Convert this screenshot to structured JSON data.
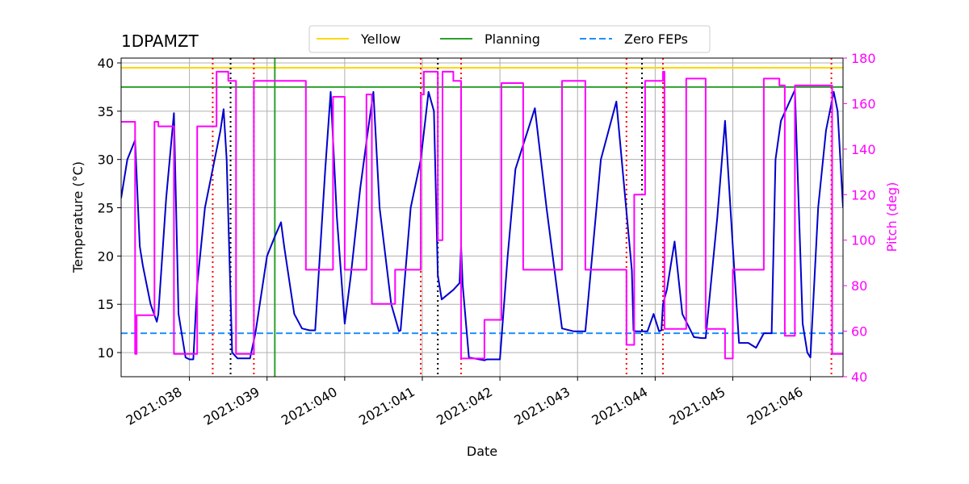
{
  "chart_data": {
    "type": "line",
    "title": "1DPAMZT",
    "xlabel": "Date",
    "ylabel": "Temperature ($^\\circ$C)",
    "ylabel_display": "Temperature (°C)",
    "y2label": "Pitch (deg)",
    "xlim": [
      37.12,
      46.42
    ],
    "ylim": [
      7.5,
      40.5
    ],
    "y2lim": [
      40,
      180
    ],
    "x_ticks": [
      {
        "value": 38,
        "label": "2021:038"
      },
      {
        "value": 39,
        "label": "2021:039"
      },
      {
        "value": 40,
        "label": "2021:040"
      },
      {
        "value": 41,
        "label": "2021:041"
      },
      {
        "value": 42,
        "label": "2021:042"
      },
      {
        "value": 43,
        "label": "2021:043"
      },
      {
        "value": 44,
        "label": "2021:044"
      },
      {
        "value": 45,
        "label": "2021:045"
      },
      {
        "value": 46,
        "label": "2021:046"
      }
    ],
    "y_ticks": [
      10,
      15,
      20,
      25,
      30,
      35,
      40
    ],
    "y2_ticks": [
      40,
      60,
      80,
      100,
      120,
      140,
      160,
      180
    ],
    "grid": true,
    "legend": {
      "placement": "top-center",
      "entries": [
        {
          "label": "Yellow",
          "color": "#ffd700",
          "style": "solid"
        },
        {
          "label": "Planning",
          "color": "#2ca02c",
          "style": "solid"
        },
        {
          "label": "Zero FEPs",
          "color": "#1e90ff",
          "style": "dashed"
        }
      ]
    },
    "limit_lines": [
      {
        "name": "Yellow",
        "y": 39.5,
        "color": "#ffd700",
        "style": "solid"
      },
      {
        "name": "Planning",
        "y": 37.5,
        "color": "#2ca02c",
        "style": "solid"
      },
      {
        "name": "Zero FEPs",
        "y": 12.0,
        "color": "#1e90ff",
        "style": "dashed"
      }
    ],
    "vlines_red_dotted": [
      38.3,
      38.83,
      40.98,
      41.5,
      43.63,
      44.1,
      46.27
    ],
    "vlines_black_dotted": [
      38.53,
      41.2,
      43.83
    ],
    "vline_green": 39.1,
    "series": [
      {
        "name": "Temperature",
        "axis": "left",
        "color": "#0000cd",
        "x": [
          37.12,
          37.2,
          37.3,
          37.36,
          37.4,
          37.5,
          37.58,
          37.6,
          37.7,
          37.8,
          37.86,
          37.95,
          38.0,
          38.05,
          38.1,
          38.2,
          38.3,
          38.4,
          38.44,
          38.48,
          38.55,
          38.62,
          38.7,
          38.78,
          38.85,
          39.0,
          39.1,
          39.18,
          39.22,
          39.35,
          39.45,
          39.55,
          39.62,
          39.75,
          39.82,
          39.9,
          40.0,
          40.08,
          40.2,
          40.3,
          40.37,
          40.45,
          40.6,
          40.7,
          40.72,
          40.85,
          40.98,
          41.08,
          41.15,
          41.2,
          41.25,
          41.4,
          41.48,
          41.5,
          41.52,
          41.6,
          41.8,
          41.83,
          42.0,
          42.1,
          42.2,
          42.45,
          42.6,
          42.8,
          42.95,
          43.1,
          43.3,
          43.5,
          43.7,
          43.72,
          43.75,
          43.78,
          43.85,
          43.9,
          43.98,
          44.05,
          44.08,
          44.1,
          44.15,
          44.25,
          44.35,
          44.5,
          44.6,
          44.65,
          44.8,
          44.9,
          45.0,
          45.08,
          45.2,
          45.3,
          45.4,
          45.45,
          45.5,
          45.55,
          45.62,
          45.8,
          45.9,
          45.96,
          46.0,
          46.1,
          46.2,
          46.3,
          46.35,
          46.42
        ],
        "y": [
          26,
          30,
          32,
          21,
          19,
          15,
          13.2,
          14,
          26,
          34.8,
          14,
          9.5,
          9.3,
          9.3,
          17,
          25,
          29,
          33,
          35.2,
          30,
          10,
          9.4,
          9.4,
          9.4,
          12,
          20,
          22,
          23.5,
          21,
          14,
          12.5,
          12.3,
          12.3,
          29,
          37,
          24,
          13,
          18,
          27,
          33,
          37,
          25,
          15,
          12.2,
          12.3,
          25,
          30,
          37,
          35,
          18,
          15.5,
          16.5,
          17.2,
          21,
          17,
          9.5,
          9.2,
          9.3,
          9.3,
          20,
          29,
          35.3,
          25,
          12.5,
          12.2,
          12.2,
          30,
          36,
          18.5,
          12.3,
          12.2,
          12.2,
          12.2,
          12.2,
          14,
          12.2,
          12.3,
          15,
          16.5,
          21.5,
          14,
          11.6,
          11.5,
          11.5,
          24,
          34,
          21,
          11,
          11,
          10.5,
          12,
          12,
          12,
          30,
          34,
          37.2,
          13,
          10,
          9.5,
          25,
          33,
          37,
          35,
          25
        ]
      },
      {
        "name": "Pitch",
        "axis": "right",
        "color": "#ff00ff",
        "x": [
          37.12,
          37.3,
          37.3,
          37.32,
          37.32,
          37.4,
          37.4,
          37.55,
          37.55,
          37.6,
          37.6,
          37.8,
          37.8,
          38.1,
          38.1,
          38.35,
          38.35,
          38.5,
          38.5,
          38.6,
          38.6,
          38.83,
          38.83,
          39.1,
          39.1,
          39.5,
          39.5,
          39.85,
          39.85,
          40.0,
          40.0,
          40.28,
          40.28,
          40.35,
          40.35,
          40.65,
          40.65,
          40.98,
          40.98,
          41.02,
          41.02,
          41.2,
          41.2,
          41.26,
          41.26,
          41.4,
          41.4,
          41.5,
          41.5,
          41.8,
          41.8,
          42.02,
          42.02,
          42.3,
          42.3,
          42.8,
          42.8,
          43.1,
          43.1,
          43.63,
          43.63,
          43.73,
          43.73,
          43.87,
          43.87,
          44.1,
          44.1,
          44.12,
          44.12,
          44.4,
          44.4,
          44.65,
          44.65,
          44.9,
          44.9,
          45.0,
          45.0,
          45.4,
          45.4,
          45.6,
          45.6,
          45.67,
          45.67,
          45.8,
          45.8,
          46.0,
          46.0,
          46.28,
          46.28,
          46.42
        ],
        "y": [
          152,
          152,
          50,
          50,
          67,
          67,
          67,
          67,
          152,
          152,
          150,
          150,
          50,
          50,
          150,
          150,
          174,
          174,
          170,
          170,
          50,
          50,
          170,
          170,
          170,
          170,
          87,
          87,
          163,
          163,
          87,
          87,
          164,
          164,
          72,
          72,
          87,
          87,
          164,
          164,
          174,
          174,
          100,
          100,
          174,
          174,
          170,
          170,
          48,
          48,
          65,
          65,
          169,
          169,
          87,
          87,
          170,
          170,
          87,
          87,
          54,
          54,
          120,
          120,
          170,
          170,
          174,
          174,
          61,
          61,
          171,
          171,
          61,
          61,
          48,
          48,
          87,
          87,
          171,
          171,
          168,
          168,
          58,
          58,
          168,
          168,
          168,
          168,
          50,
          50
        ]
      }
    ]
  }
}
